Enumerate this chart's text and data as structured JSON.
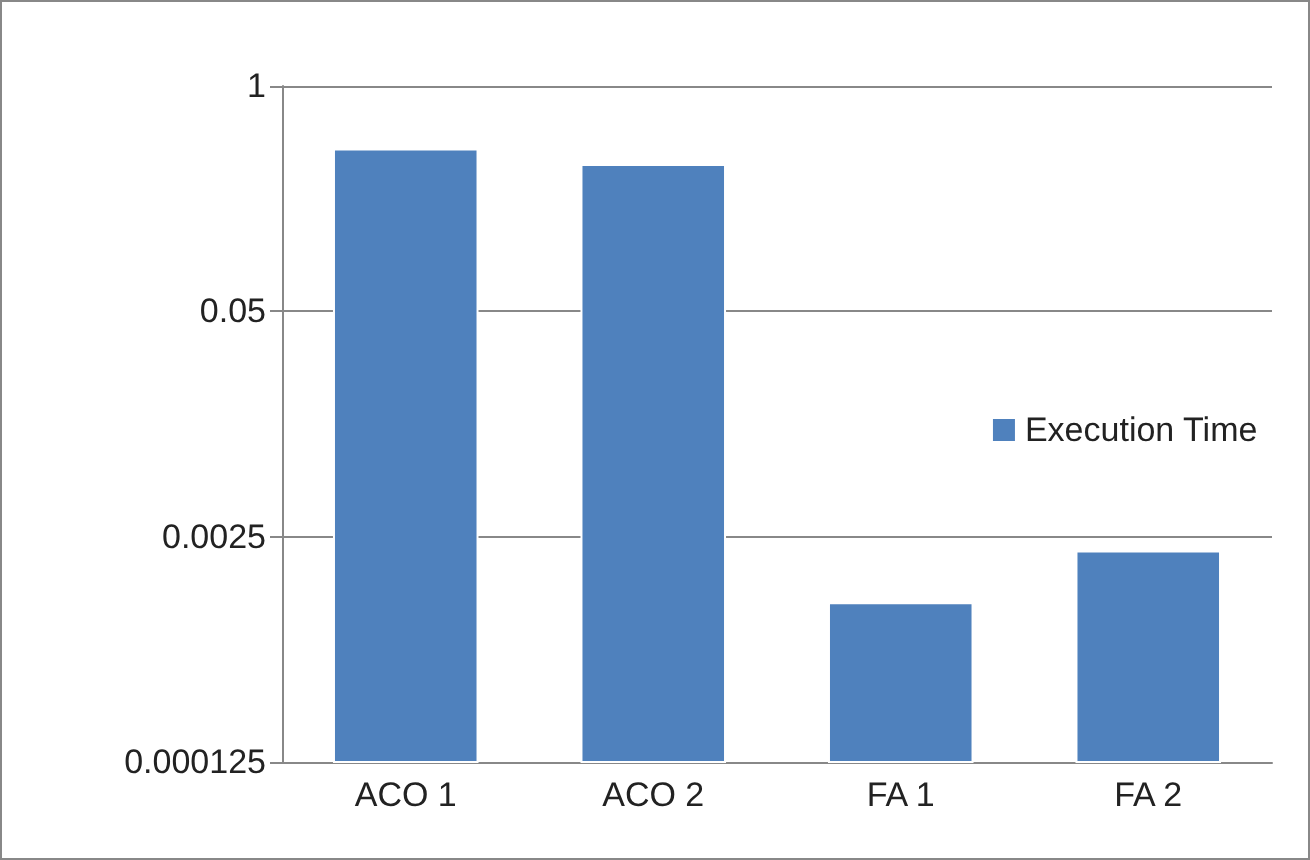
{
  "chart_data": {
    "type": "bar",
    "categories": [
      "ACO 1",
      "ACO 2",
      "FA 1",
      "FA 2"
    ],
    "series": [
      {
        "name": "Execution Time",
        "color": "#4f81bd",
        "values": [
          0.43,
          0.35,
          0.00103,
          0.00205
        ]
      }
    ],
    "log": true,
    "ylim": [
      0.000125,
      1
    ],
    "yticks": [
      0.000125,
      0.0025,
      0.05,
      1
    ],
    "grid": "y",
    "legend": "right"
  }
}
